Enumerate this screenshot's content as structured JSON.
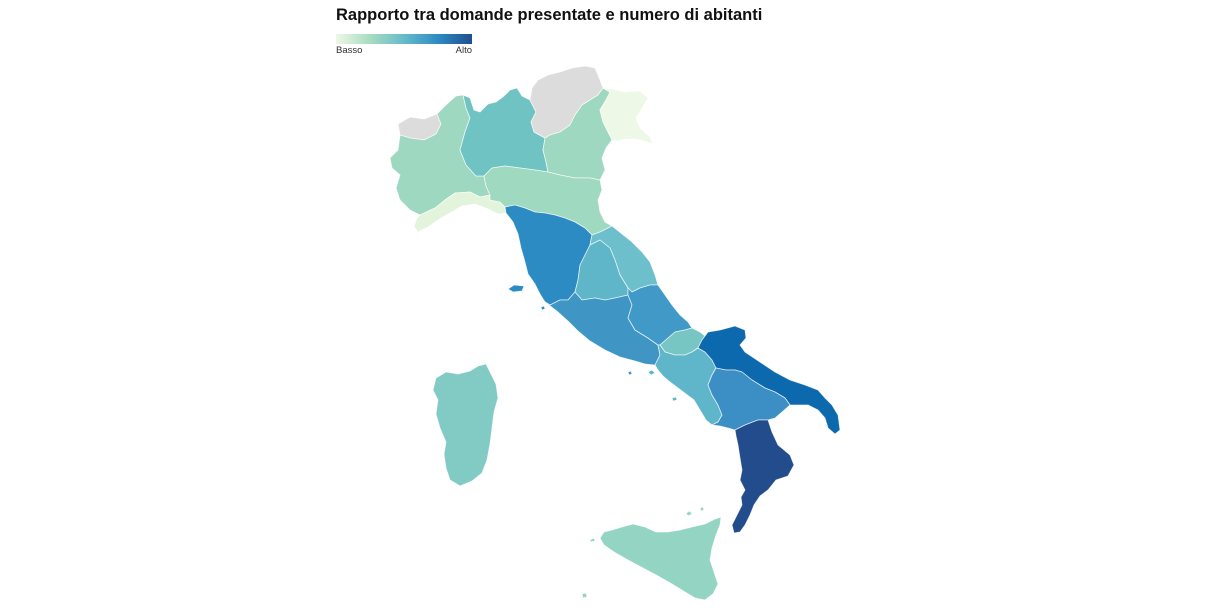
{
  "title": "Rapporto tra domande presentate e numero di abitanti",
  "legend": {
    "low_label": "Basso",
    "high_label": "Alto",
    "colors": [
      "#edf8e6",
      "#a8dcc0",
      "#66bbc9",
      "#2e8bc3",
      "#1f4f8f"
    ]
  },
  "map": {
    "region_border_color": "#ffffff",
    "regions": {
      "valle_daosta": {
        "level": null,
        "color": "#dcdcdc"
      },
      "piemonte": {
        "level": 0.25,
        "color": "#9ed8c1"
      },
      "lombardia": {
        "level": 0.45,
        "color": "#70c3c3"
      },
      "trentino_alto_adige": {
        "level": null,
        "color": "#dcdcdc"
      },
      "veneto": {
        "level": 0.25,
        "color": "#9ed8c1"
      },
      "friuli_venezia_giulia": {
        "level": 0.02,
        "color": "#edf8e6"
      },
      "liguria": {
        "level": 0.05,
        "color": "#e3f4dd"
      },
      "emilia_romagna": {
        "level": 0.25,
        "color": "#9fd9bf"
      },
      "toscana": {
        "level": 0.75,
        "color": "#2d8bc3"
      },
      "marche": {
        "level": 0.47,
        "color": "#6dbfcb"
      },
      "umbria": {
        "level": 0.5,
        "color": "#60b6c9"
      },
      "lazio": {
        "level": 0.65,
        "color": "#3f96c5"
      },
      "abruzzo": {
        "level": 0.64,
        "color": "#4199c7"
      },
      "molise": {
        "level": 0.43,
        "color": "#77c6c3"
      },
      "campania": {
        "level": 0.5,
        "color": "#5fb5c9"
      },
      "puglia": {
        "level": 0.85,
        "color": "#0d69ad"
      },
      "basilicata": {
        "level": 0.7,
        "color": "#3b8fc4"
      },
      "calabria": {
        "level": 1.0,
        "color": "#234c8c"
      },
      "sicilia": {
        "level": 0.3,
        "color": "#94d4c2"
      },
      "sardegna": {
        "level": 0.38,
        "color": "#81cbc4"
      }
    }
  }
}
